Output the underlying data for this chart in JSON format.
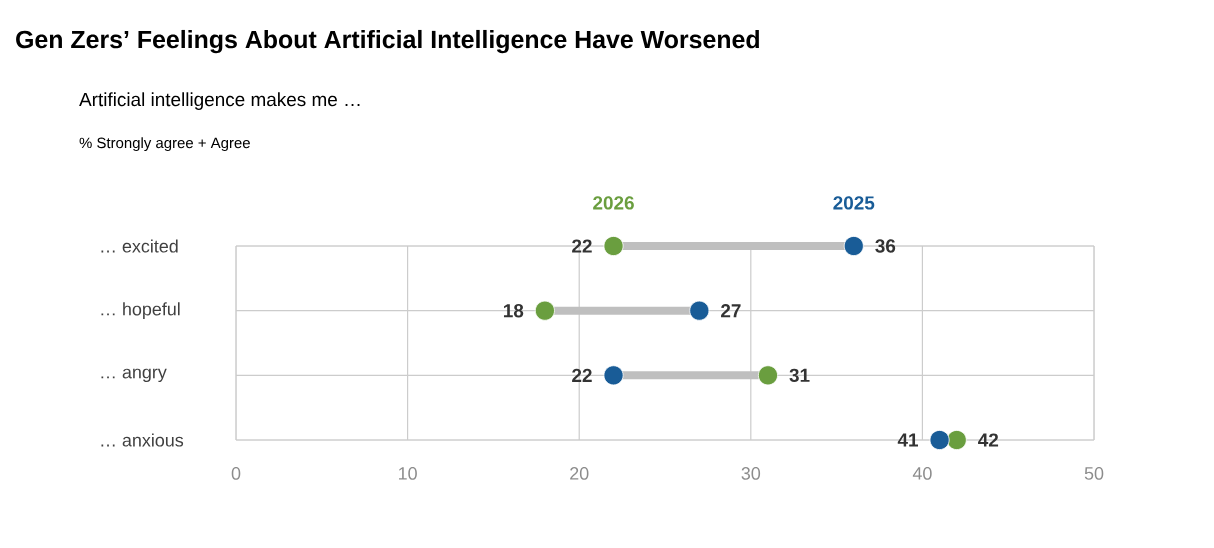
{
  "chart_data": {
    "type": "scatter",
    "orientation": "horizontal",
    "title": "Gen Zers’ Feelings About Artificial Intelligence Have Worsened",
    "subtitle": "Artificial intelligence makes me …",
    "annotations": [
      "% Strongly agree + Agree"
    ],
    "categories": [
      "… excited",
      "… hopeful",
      "… angry",
      "… anxious"
    ],
    "series": [
      {
        "name": "2026",
        "color": "#6a9e3f",
        "values": [
          22,
          18,
          31,
          42
        ]
      },
      {
        "name": "2025",
        "color": "#195c97",
        "values": [
          36,
          27,
          22,
          41
        ]
      }
    ],
    "xlim": [
      0,
      50
    ],
    "xticks": [
      0,
      10,
      20,
      30,
      40,
      50
    ],
    "grid": true,
    "data_labels": true,
    "marker": "circle"
  }
}
